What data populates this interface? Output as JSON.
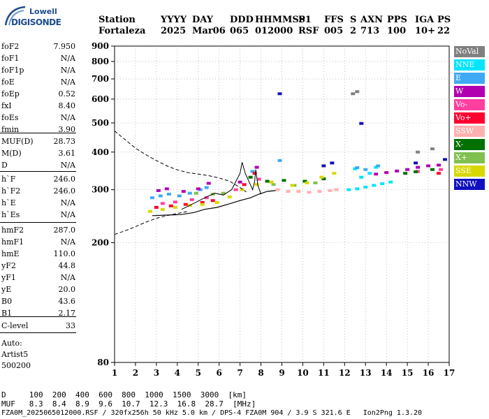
{
  "logo": {
    "line1": "Lowell",
    "line2": "DIGISONDE"
  },
  "header": {
    "labels": [
      "Station",
      "YYYY",
      "DAY",
      "DDD",
      "HHMMSS",
      "P1",
      "FFS",
      "S",
      "AXN",
      "PPS",
      "IGA",
      "PS"
    ],
    "values": [
      "Fortaleza",
      "2025",
      "Mar06",
      "065",
      "012000",
      "RSF",
      "005",
      "2",
      "713",
      "100",
      "10+",
      "22"
    ]
  },
  "params": {
    "group1": [
      {
        "k": "foF2",
        "v": "7.950"
      },
      {
        "k": "foF1",
        "v": "N/A"
      },
      {
        "k": "foF1p",
        "v": "N/A"
      },
      {
        "k": "foE",
        "v": "N/A"
      },
      {
        "k": "foEp",
        "v": "0.52"
      },
      {
        "k": "fxI",
        "v": "8.40"
      },
      {
        "k": "foEs",
        "v": "N/A"
      },
      {
        "k": "fmin",
        "v": "3.90"
      }
    ],
    "group2": [
      {
        "k": "MUF(D)",
        "v": "28.73"
      },
      {
        "k": "M(D)",
        "v": "3.61"
      },
      {
        "k": "D",
        "v": "N/A"
      }
    ],
    "group3": [
      {
        "k": "h`F",
        "v": "246.0"
      },
      {
        "k": "h`F2",
        "v": "246.0"
      },
      {
        "k": "h`E",
        "v": "N/A"
      },
      {
        "k": "h`Es",
        "v": "N/A"
      }
    ],
    "group4": [
      {
        "k": "hmF2",
        "v": "287.0"
      },
      {
        "k": "hmF1",
        "v": "N/A"
      },
      {
        "k": "hmE",
        "v": "110.0"
      },
      {
        "k": "yF2",
        "v": "44.8"
      },
      {
        "k": "yF1",
        "v": "N/A"
      },
      {
        "k": "yE",
        "v": "20.0"
      },
      {
        "k": "B0",
        "v": "43.6"
      },
      {
        "k": "B1",
        "v": "2.17"
      }
    ],
    "clevel": {
      "k": "C-level",
      "v": "33"
    },
    "auto": [
      "Auto:",
      "Artist5",
      "500200"
    ]
  },
  "legend": [
    {
      "label": "NoVal",
      "color": "#808080"
    },
    {
      "label": "NNE",
      "color": "#00e5ff"
    },
    {
      "label": "E",
      "color": "#3fa9f5"
    },
    {
      "label": "W",
      "color": "#b000b0"
    },
    {
      "label": "Vo-",
      "color": "#ff3fa0"
    },
    {
      "label": "Vo+",
      "color": "#ff0030"
    },
    {
      "label": "SSW",
      "color": "#ffb0b0"
    },
    {
      "label": "X-",
      "color": "#007000"
    },
    {
      "label": "X+",
      "color": "#80c050"
    },
    {
      "label": "SSE",
      "color": "#d8d800"
    },
    {
      "label": "NNW",
      "color": "#1010c0"
    }
  ],
  "chart_data": {
    "type": "scatter",
    "title": "",
    "xlabel": "",
    "ylabel": "",
    "xlim": [
      1,
      17
    ],
    "ylim": [
      80,
      900
    ],
    "y_scale": "log",
    "x_ticks": [
      1,
      2,
      3,
      4,
      5,
      6,
      7,
      8,
      9,
      10,
      11,
      12,
      13,
      14,
      15,
      16,
      17
    ],
    "y_ticks": [
      80,
      200,
      300,
      400,
      500,
      600,
      700,
      800,
      900
    ],
    "grid": true,
    "series": [
      {
        "name": "NNE",
        "points": [
          [
            12.2,
            300
          ],
          [
            12.6,
            302
          ],
          [
            13.0,
            306
          ],
          [
            13.4,
            310
          ],
          [
            13.8,
            314
          ],
          [
            14.2,
            318
          ],
          [
            12.8,
            330
          ],
          [
            13.2,
            340
          ],
          [
            12.5,
            352
          ],
          [
            13.5,
            356
          ]
        ]
      },
      {
        "name": "E",
        "points": [
          [
            2.8,
            282
          ],
          [
            3.2,
            286
          ],
          [
            3.6,
            290
          ],
          [
            4.1,
            286
          ],
          [
            4.6,
            292
          ],
          [
            5.1,
            300
          ],
          [
            5.4,
            305
          ],
          [
            7.6,
            345
          ],
          [
            8.9,
            375
          ],
          [
            12.6,
            355
          ],
          [
            13.0,
            350
          ],
          [
            13.6,
            360
          ]
        ]
      },
      {
        "name": "W",
        "points": [
          [
            3.1,
            298
          ],
          [
            3.5,
            302
          ],
          [
            4.3,
            296
          ],
          [
            5.0,
            302
          ],
          [
            5.5,
            315
          ],
          [
            7.0,
            318
          ],
          [
            7.8,
            356
          ],
          [
            13.5,
            338
          ],
          [
            14.0,
            342
          ],
          [
            14.5,
            346
          ],
          [
            15.0,
            350
          ],
          [
            15.5,
            356
          ],
          [
            16.0,
            360
          ],
          [
            16.5,
            362
          ]
        ]
      },
      {
        "name": "Vo-",
        "points": [
          [
            3.3,
            270
          ],
          [
            3.9,
            273
          ],
          [
            4.7,
            278
          ],
          [
            5.4,
            282
          ],
          [
            6.8,
            300
          ],
          [
            7.9,
            325
          ],
          [
            15.5,
            345
          ],
          [
            16.6,
            350
          ]
        ]
      },
      {
        "name": "Vo+",
        "points": [
          [
            3.0,
            262
          ],
          [
            3.7,
            265
          ],
          [
            4.4,
            268
          ],
          [
            5.2,
            272
          ],
          [
            5.7,
            276
          ],
          [
            7.2,
            312
          ],
          [
            7.7,
            340
          ],
          [
            16.5,
            340
          ]
        ]
      },
      {
        "name": "SSW",
        "points": [
          [
            8.8,
            300
          ],
          [
            9.3,
            296
          ],
          [
            9.8,
            296
          ],
          [
            10.3,
            294
          ],
          [
            10.8,
            296
          ],
          [
            11.3,
            298
          ],
          [
            11.6,
            300
          ]
        ]
      },
      {
        "name": "X-",
        "points": [
          [
            7.5,
            330
          ],
          [
            8.3,
            320
          ],
          [
            9.1,
            322
          ],
          [
            10.1,
            320
          ],
          [
            11.0,
            326
          ],
          [
            14.9,
            340
          ],
          [
            15.4,
            344
          ],
          [
            16.2,
            350
          ]
        ]
      },
      {
        "name": "X+",
        "points": [
          [
            4.9,
            292
          ],
          [
            5.7,
            290
          ],
          [
            6.2,
            292
          ],
          [
            8.6,
            312
          ],
          [
            9.6,
            310
          ],
          [
            10.6,
            316
          ]
        ]
      },
      {
        "name": "SSE",
        "points": [
          [
            2.7,
            254
          ],
          [
            3.3,
            258
          ],
          [
            3.9,
            262
          ],
          [
            4.6,
            266
          ],
          [
            5.2,
            268
          ],
          [
            5.9,
            272
          ],
          [
            6.5,
            284
          ],
          [
            7.1,
            300
          ],
          [
            7.8,
            312
          ],
          [
            8.5,
            318
          ],
          [
            9.5,
            310
          ],
          [
            10.2,
            316
          ],
          [
            10.9,
            330
          ],
          [
            11.5,
            340
          ]
        ]
      },
      {
        "name": "NNW",
        "points": [
          [
            11.0,
            360
          ],
          [
            11.4,
            368
          ],
          [
            8.9,
            625
          ],
          [
            12.8,
            498
          ],
          [
            15.4,
            368
          ],
          [
            16.8,
            378
          ]
        ]
      },
      {
        "name": "NoVal",
        "points": [
          [
            12.6,
            635
          ],
          [
            12.4,
            625
          ],
          [
            15.5,
            400
          ],
          [
            16.2,
            410
          ]
        ]
      }
    ],
    "traces": {
      "upper_dashed": [
        [
          1,
          470
        ],
        [
          1.5,
          440
        ],
        [
          2,
          412
        ],
        [
          2.5,
          392
        ],
        [
          3,
          375
        ],
        [
          3.5,
          360
        ],
        [
          4,
          349
        ],
        [
          4.5,
          342
        ],
        [
          5,
          338
        ],
        [
          5.5,
          334
        ],
        [
          6,
          328
        ],
        [
          6.5,
          320
        ],
        [
          7,
          305
        ],
        [
          7.3,
          295
        ]
      ],
      "lower_dashed": [
        [
          1,
          213
        ],
        [
          1.5,
          219
        ],
        [
          2,
          226
        ],
        [
          2.5,
          234
        ],
        [
          3,
          241
        ],
        [
          3.5,
          246
        ],
        [
          4,
          250
        ],
        [
          4.5,
          254
        ]
      ],
      "trace_solid": [
        [
          2.8,
          246
        ],
        [
          3.5,
          247
        ],
        [
          4.2,
          248
        ],
        [
          4.8,
          252
        ],
        [
          5.3,
          258
        ],
        [
          5.9,
          262
        ],
        [
          6.4,
          268
        ],
        [
          7.0,
          276
        ],
        [
          7.5,
          282
        ],
        [
          7.9,
          290
        ],
        [
          8.3,
          296
        ],
        [
          8.7,
          298
        ]
      ],
      "echo_curve": [
        [
          4.2,
          258
        ],
        [
          4.6,
          266
        ],
        [
          5.0,
          275
        ],
        [
          5.4,
          284
        ],
        [
          5.8,
          292
        ],
        [
          6.2,
          288
        ],
        [
          6.6,
          300
        ],
        [
          7.0,
          340
        ],
        [
          7.1,
          370
        ],
        [
          7.25,
          340
        ],
        [
          7.6,
          300
        ],
        [
          7.7,
          320
        ],
        [
          7.75,
          350
        ],
        [
          7.85,
          310
        ],
        [
          8.0,
          290
        ]
      ]
    }
  },
  "footer": {
    "d_row": "D     100  200  400  600  800  1000  1500  3000  [km]",
    "muf_row": "MUF   8.3  8.4  8.9  9.6  10.7  12.3  16.8  28.7  [MHz]",
    "file_line": "FZA0M_2025065012000.RSF / 320fx256h 50 kHz 5.0 km / DPS-4 FZA0M 904 / 3.9 S 321.6 E   Ion2Png 1.3.20"
  }
}
